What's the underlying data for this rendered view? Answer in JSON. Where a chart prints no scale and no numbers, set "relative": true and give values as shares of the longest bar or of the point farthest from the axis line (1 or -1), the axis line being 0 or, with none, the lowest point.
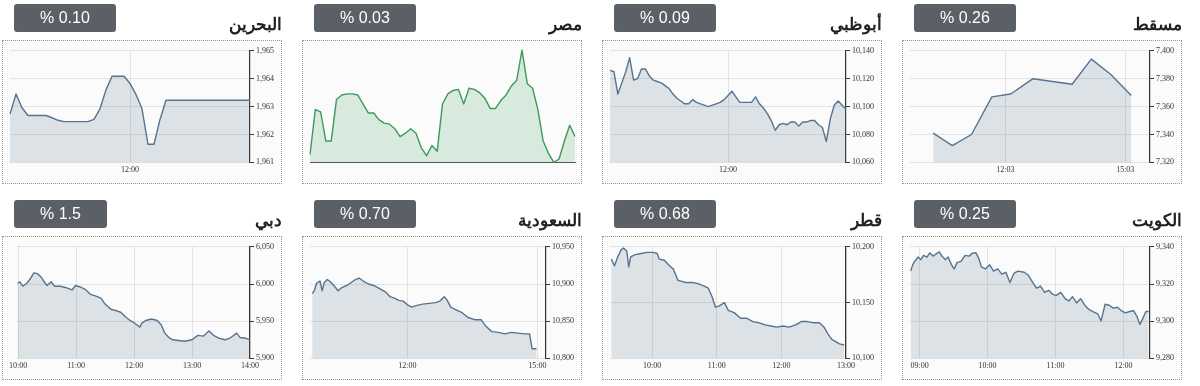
{
  "chart_data": [
    {
      "type": "area",
      "title": "مسقط",
      "subtitle": "% 0.26",
      "x": [
        10.24,
        10.72,
        11.2,
        11.71,
        12.18,
        12.74,
        13.72,
        14.2,
        14.69,
        15.2
      ],
      "values": [
        7341,
        7332,
        7340,
        7367,
        7369,
        7380,
        7376,
        7394,
        7383,
        7368
      ],
      "color": "#56748f",
      "xlim": [
        9.66,
        15.67
      ],
      "xticks": [
        {
          "value": 12.05,
          "label": "12:03"
        },
        {
          "value": 15.05,
          "label": "15:03"
        }
      ],
      "ylim": [
        7320,
        7400
      ],
      "yticks": [
        {
          "value": 7320,
          "label": "7,320"
        },
        {
          "value": 7340,
          "label": "7,340"
        },
        {
          "value": 7360,
          "label": "7,360"
        },
        {
          "value": 7380,
          "label": "7,380"
        },
        {
          "value": 7400,
          "label": "7,400"
        }
      ],
      "grid": true
    },
    {
      "type": "area",
      "title": "أبوظبي",
      "subtitle": "% 0.09",
      "categories": [
        null,
        null,
        null,
        null,
        null,
        null,
        null,
        null,
        null,
        null,
        null,
        null,
        null,
        null,
        null,
        null,
        null,
        null,
        null,
        null,
        null,
        null,
        null,
        null,
        null,
        null,
        null,
        null,
        null,
        null,
        "12:00",
        null,
        null,
        null,
        null,
        null,
        null,
        null,
        null,
        null,
        null,
        null,
        null,
        null,
        null,
        null,
        null,
        null,
        null,
        null,
        null,
        null,
        null,
        null,
        null,
        null,
        null,
        null,
        null,
        null,
        null
      ],
      "values": [
        10126,
        10125,
        10109,
        10117,
        10125,
        10135,
        10119,
        10120,
        10127,
        10127,
        10122,
        10119,
        10118,
        10117,
        10115,
        10113,
        10109,
        10106,
        10104,
        10102,
        10102,
        10105,
        10103,
        10102,
        10101,
        10100,
        10101,
        10102,
        10103,
        10105,
        10108,
        10111,
        10107,
        10103,
        10103,
        10103,
        10103,
        10107,
        10102,
        10099,
        10095,
        10090,
        10083,
        10087,
        10088,
        10087,
        10089,
        10089,
        10086,
        10089,
        10089,
        10090,
        10090,
        10087,
        10085,
        10075,
        10091,
        10101,
        10104,
        10101,
        10098
      ],
      "color": "#56748f",
      "ylim": [
        10060,
        10140
      ],
      "yticks": [
        {
          "value": 10060,
          "label": "10,060"
        },
        {
          "value": 10080,
          "label": "10,080"
        },
        {
          "value": 10100,
          "label": "10,100"
        },
        {
          "value": 10120,
          "label": "10,120"
        },
        {
          "value": 10140,
          "label": "10,140"
        }
      ],
      "grid": true
    },
    {
      "type": "area",
      "title": "مصر",
      "subtitle": "% 0.03",
      "relative": true,
      "categories": [
        null,
        null,
        null,
        null,
        null,
        null,
        null,
        null,
        null,
        null,
        null,
        null,
        null,
        null,
        null,
        null,
        null,
        null,
        null,
        null,
        null,
        null,
        null,
        null,
        null,
        null,
        null,
        null,
        null,
        null,
        null,
        null,
        null,
        null,
        null,
        null,
        null,
        null,
        null,
        null,
        null,
        null,
        null,
        null,
        null,
        null,
        null,
        null,
        null,
        null,
        null
      ],
      "values": [
        0.07,
        0.47,
        0.45,
        0.19,
        0.19,
        0.56,
        0.6,
        0.61,
        0.61,
        0.6,
        0.52,
        0.44,
        0.44,
        0.38,
        0.35,
        0.34,
        0.3,
        0.23,
        0.26,
        0.3,
        0.26,
        0.13,
        0.06,
        0.15,
        0.1,
        0.52,
        0.61,
        0.64,
        0.65,
        0.52,
        0.66,
        0.65,
        0.62,
        0.57,
        0.48,
        0.48,
        0.55,
        0.6,
        0.68,
        0.73,
        1,
        0.7,
        0.66,
        0.47,
        0.19,
        0.08,
        0,
        0.03,
        0.19,
        0.33,
        0.23
      ],
      "color": "#3b9a5c"
    },
    {
      "type": "area",
      "title": "البحرين",
      "subtitle": "% 0.10",
      "categories": [
        null,
        null,
        null,
        null,
        null,
        null,
        null,
        null,
        null,
        null,
        null,
        null,
        null,
        null,
        null,
        null,
        null,
        null,
        null,
        null,
        "12:00",
        null,
        null,
        null,
        null,
        null,
        null,
        null,
        null,
        null,
        null,
        null,
        null,
        null,
        null,
        null,
        null,
        null,
        null,
        null,
        null
      ],
      "values": [
        1962.73,
        1963.45,
        1962.96,
        1962.68,
        1962.68,
        1962.68,
        1962.68,
        1962.6,
        1962.51,
        1962.46,
        1962.46,
        1962.46,
        1962.46,
        1962.46,
        1962.54,
        1962.92,
        1963.6,
        1964.09,
        1964.09,
        1964.09,
        1963.83,
        1963.43,
        1962.92,
        1961.65,
        1961.65,
        1962.54,
        1963.23,
        1963.23,
        1963.23,
        1963.23,
        1963.23,
        1963.23,
        1963.23,
        1963.23,
        1963.23,
        1963.23,
        1963.23,
        1963.23,
        1963.23,
        1963.23,
        1963.23
      ],
      "color": "#56748f",
      "ylim": [
        1961,
        1965
      ],
      "yticks": [
        {
          "value": 1961,
          "label": "1,961"
        },
        {
          "value": 1962,
          "label": "1,962"
        },
        {
          "value": 1963,
          "label": "1,963"
        },
        {
          "value": 1964,
          "label": "1,964"
        },
        {
          "value": 1965,
          "label": "1,965"
        }
      ],
      "grid": true
    },
    {
      "type": "area",
      "title": "الكويت",
      "subtitle": "% 0.25",
      "x": [
        8.87,
        8.9,
        8.93,
        8.98,
        9.02,
        9.06,
        9.11,
        9.15,
        9.2,
        9.24,
        9.29,
        9.33,
        9.38,
        9.42,
        9.47,
        9.51,
        9.55,
        9.61,
        9.67,
        9.73,
        9.78,
        9.83,
        9.87,
        9.91,
        9.97,
        10.03,
        10.09,
        10.15,
        10.21,
        10.27,
        10.33,
        10.39,
        10.45,
        10.54,
        10.6,
        10.66,
        10.72,
        10.78,
        10.84,
        10.9,
        10.96,
        11.01,
        11.08,
        11.14,
        11.2,
        11.25,
        11.31,
        11.37,
        11.43,
        11.49,
        11.55,
        11.62,
        11.67,
        11.73,
        11.79,
        11.85,
        11.91,
        11.97,
        12.03,
        12.09,
        12.15,
        12.2,
        12.24,
        12.28,
        12.33,
        12.37
      ],
      "values": [
        9327,
        9330.4,
        9332.2,
        9334.5,
        9333.1,
        9335.4,
        9334.5,
        9336.8,
        9335,
        9336.1,
        9337.3,
        9335,
        9333.1,
        9334.5,
        9330.4,
        9328.1,
        9331.5,
        9332.2,
        9335.4,
        9335,
        9336.6,
        9336.8,
        9333.8,
        9329.2,
        9328.1,
        9330.4,
        9326.9,
        9328.1,
        9325.3,
        9326.3,
        9320.8,
        9325.8,
        9326.9,
        9326.3,
        9324.7,
        9321.2,
        9317.8,
        9318.9,
        9315.5,
        9316.6,
        9314.4,
        9313.9,
        9315.5,
        9312.1,
        9310.9,
        9313.2,
        9309.8,
        9312.1,
        9308.6,
        9306.3,
        9305.2,
        9304,
        9300.2,
        9309.1,
        9308.6,
        9307,
        9307.5,
        9305.6,
        9304.5,
        9305.2,
        9305.6,
        9302.4,
        9298.3,
        9301.1,
        9305.2,
        9305.2
      ],
      "color": "#56748f",
      "xlim": [
        8.86,
        12.39
      ],
      "xticks": [
        {
          "value": 9,
          "label": "09:00"
        },
        {
          "value": 10,
          "label": "10:00"
        },
        {
          "value": 11,
          "label": "11:00"
        },
        {
          "value": 12,
          "label": "12:00"
        }
      ],
      "ylim": [
        9280,
        9340
      ],
      "yticks": [
        {
          "value": 9280,
          "label": "9,280"
        },
        {
          "value": 9300,
          "label": "9,300"
        },
        {
          "value": 9320,
          "label": "9,320"
        },
        {
          "value": 9340,
          "label": "9,340"
        }
      ],
      "grid": true
    },
    {
      "type": "area",
      "title": "قطر",
      "subtitle": "% 0.68",
      "x": [
        9.37,
        9.42,
        9.47,
        9.52,
        9.56,
        9.61,
        9.64,
        9.67,
        9.74,
        9.83,
        9.92,
        10.02,
        10.08,
        10.11,
        10.19,
        10.27,
        10.33,
        10.4,
        10.46,
        10.52,
        10.62,
        10.71,
        10.8,
        10.87,
        10.93,
        10.98,
        11.04,
        11.12,
        11.18,
        11.27,
        11.37,
        11.46,
        11.56,
        11.65,
        11.75,
        11.84,
        11.93,
        12.03,
        12.12,
        12.22,
        12.31,
        12.4,
        12.5,
        12.59,
        12.66,
        12.72,
        12.78,
        12.84,
        12.9,
        12.97
      ],
      "values": [
        10189,
        10183,
        10191,
        10197,
        10199,
        10196,
        10182,
        10191,
        10193,
        10194,
        10195,
        10195,
        10194,
        10189,
        10188,
        10183,
        10180,
        10170,
        10169,
        10168,
        10168,
        10167,
        10165,
        10163,
        10155,
        10146,
        10147,
        10150,
        10143,
        10141,
        10136,
        10136,
        10133,
        10132,
        10130,
        10129,
        10128,
        10129,
        10128,
        10130,
        10133,
        10133,
        10132,
        10132,
        10128,
        10122,
        10117,
        10115,
        10113,
        10112
      ],
      "color": "#56748f",
      "xlim": [
        9.35,
        13.0
      ],
      "xticks": [
        {
          "value": 10,
          "label": "10:00"
        },
        {
          "value": 11,
          "label": "11:00"
        },
        {
          "value": 12,
          "label": "12:00"
        },
        {
          "value": 13,
          "label": "13:00"
        }
      ],
      "ylim": [
        10100,
        10200
      ],
      "yticks": [
        {
          "value": 10100,
          "label": "10,100"
        },
        {
          "value": 10150,
          "label": "10,150"
        },
        {
          "value": 10200,
          "label": "10,200"
        }
      ],
      "grid": true
    },
    {
      "type": "area",
      "title": "السعودية",
      "subtitle": "% 0.70",
      "x": [
        9.8,
        9.85,
        9.9,
        9.98,
        10.03,
        10.08,
        10.15,
        10.22,
        10.3,
        10.4,
        10.48,
        10.6,
        10.7,
        10.8,
        10.88,
        10.98,
        11.1,
        11.22,
        11.35,
        11.5,
        11.6,
        11.7,
        11.8,
        11.9,
        12,
        12.1,
        12.2,
        12.35,
        12.5,
        12.65,
        12.75,
        12.85,
        12.92,
        13,
        13.1,
        13.25,
        13.4,
        13.55,
        13.7,
        13.8,
        13.95,
        14.1,
        14.25,
        14.4,
        14.55,
        14.7,
        14.82,
        14.88,
        14.98
      ],
      "values": [
        10887,
        10891,
        10901,
        10904,
        10891,
        10902,
        10906,
        10903,
        10898,
        10891,
        10895,
        10898,
        10902,
        10906,
        10908,
        10904,
        10900,
        10898,
        10894,
        10889,
        10883,
        10881,
        10878,
        10877,
        10872,
        10869,
        10871,
        10873,
        10874,
        10875,
        10877,
        10883,
        10878,
        10869,
        10866,
        10862,
        10855,
        10852,
        10852,
        10844,
        10836,
        10835,
        10833,
        10835,
        10834,
        10833,
        10833,
        10813,
        10813
      ],
      "color": "#56748f",
      "xlim": [
        9.75,
        15.2
      ],
      "xticks": [
        {
          "value": 12,
          "label": "12:00"
        },
        {
          "value": 15,
          "label": "15:00"
        }
      ],
      "ylim": [
        10800,
        10950
      ],
      "yticks": [
        {
          "value": 10800,
          "label": "10,800"
        },
        {
          "value": 10850,
          "label": "10,850"
        },
        {
          "value": 10900,
          "label": "10,900"
        },
        {
          "value": 10950,
          "label": "10,950"
        }
      ],
      "grid": true
    },
    {
      "type": "area",
      "title": "دبي",
      "subtitle": "% 1.5",
      "x": [
        9.99,
        10.03,
        10.08,
        10.15,
        10.21,
        10.27,
        10.33,
        10.4,
        10.45,
        10.5,
        10.57,
        10.63,
        10.73,
        10.83,
        10.93,
        10.99,
        11.07,
        11.17,
        11.25,
        11.33,
        11.43,
        11.5,
        11.6,
        11.7,
        11.77,
        11.85,
        11.93,
        12,
        12.1,
        12.13,
        12.2,
        12.3,
        12.4,
        12.47,
        12.53,
        12.6,
        12.67,
        12.77,
        12.87,
        13,
        13.1,
        13.2,
        13.29,
        13.37,
        13.47,
        13.57,
        13.67,
        13.77,
        13.83,
        13.93,
        14
      ],
      "values": [
        6001,
        6003,
        5997,
        6001,
        6007,
        6015,
        6014,
        6009,
        6003,
        5998,
        6003,
        5997,
        5997,
        5995,
        5992,
        5998,
        5996,
        5992,
        5986,
        5984,
        5981,
        5973,
        5966,
        5964,
        5962,
        5956,
        5951,
        5948,
        5942,
        5947,
        5951,
        5953,
        5951,
        5945,
        5934,
        5928,
        5925,
        5924,
        5923,
        5925,
        5931,
        5930,
        5937,
        5931,
        5927,
        5925,
        5928,
        5934,
        5928,
        5927,
        5925
      ],
      "color": "#56748f",
      "xlim": [
        9.98,
        14
      ],
      "xticks": [
        {
          "value": 10,
          "label": "10:00"
        },
        {
          "value": 11,
          "label": "11:00"
        },
        {
          "value": 12,
          "label": "12:00"
        },
        {
          "value": 13,
          "label": "13:00"
        },
        {
          "value": 14,
          "label": "14:00"
        }
      ],
      "ylim": [
        5900,
        6050
      ],
      "yticks": [
        {
          "value": 5900,
          "label": "5,900"
        },
        {
          "value": 5950,
          "label": "5,950"
        },
        {
          "value": 6000,
          "label": "6,000"
        },
        {
          "value": 6050,
          "label": "6,050"
        }
      ],
      "grid": true
    }
  ]
}
